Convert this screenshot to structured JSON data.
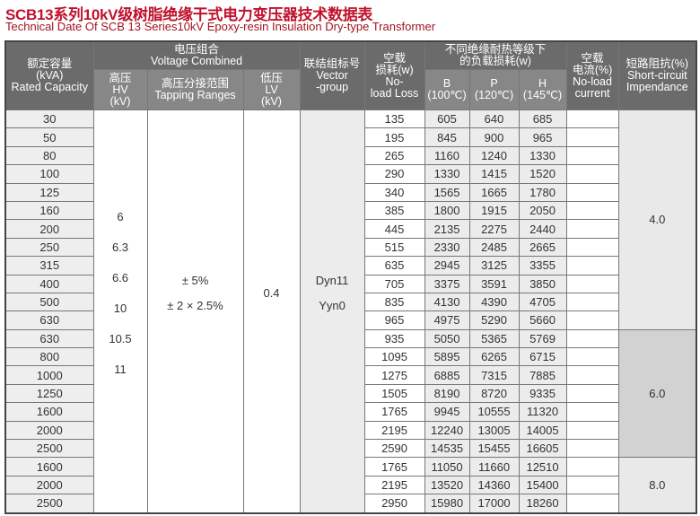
{
  "title": "SCB13系列10kV级树脂绝缘干式电力变压器技术数据表",
  "subtitle": "Technical Date Of SCB 13 Series10kV Epoxy-resin Insulation Dry-type Transformer",
  "headers": {
    "capacity": [
      "额定容量",
      "(kVA)",
      "Rated Capacity"
    ],
    "voltage": [
      "电压组合",
      "Voltage Combined"
    ],
    "hv": [
      "高压",
      "HV",
      "(kV)"
    ],
    "tapping": [
      "高压分接范围",
      "Tapping Ranges"
    ],
    "lv": [
      "低压",
      "LV",
      "(kV)"
    ],
    "vector": [
      "联结组标号",
      "Vector",
      "-group"
    ],
    "noload_loss": [
      "空载",
      "损耗(w)",
      "No-",
      "load Loss"
    ],
    "load_loss": [
      "不同绝缘耐热等级下",
      "的负载损耗(w)"
    ],
    "b": [
      "B",
      "(100℃)"
    ],
    "p": [
      "P",
      "(120℃)"
    ],
    "h": [
      "H",
      "(145℃)"
    ],
    "noload_current": [
      "空载",
      "电流(%)",
      "No-load",
      "current"
    ],
    "impedance": [
      "短路阻抗(%)",
      "Short-circuit",
      "Impendance"
    ]
  },
  "merged": {
    "hv_values": [
      "6",
      "6.3",
      "6.6",
      "10",
      "10.5",
      "11"
    ],
    "tapping_values": [
      "± 5%",
      "± 2 × 2.5%"
    ],
    "lv_value": "0.4",
    "vector_values": [
      "Dyn11",
      "Yyn0"
    ],
    "impedance_groups": [
      {
        "value": "4.0",
        "rows": 12
      },
      {
        "value": "6.0",
        "rows": 7
      },
      {
        "value": "8.0",
        "rows": 3
      }
    ]
  },
  "rows": [
    {
      "capacity": "30",
      "noload": "135",
      "b": "605",
      "p": "640",
      "h": "685",
      "current": ""
    },
    {
      "capacity": "50",
      "noload": "195",
      "b": "845",
      "p": "900",
      "h": "965",
      "current": ""
    },
    {
      "capacity": "80",
      "noload": "265",
      "b": "1160",
      "p": "1240",
      "h": "1330",
      "current": ""
    },
    {
      "capacity": "100",
      "noload": "290",
      "b": "1330",
      "p": "1415",
      "h": "1520",
      "current": ""
    },
    {
      "capacity": "125",
      "noload": "340",
      "b": "1565",
      "p": "1665",
      "h": "1780",
      "current": ""
    },
    {
      "capacity": "160",
      "noload": "385",
      "b": "1800",
      "p": "1915",
      "h": "2050",
      "current": ""
    },
    {
      "capacity": "200",
      "noload": "445",
      "b": "2135",
      "p": "2275",
      "h": "2440",
      "current": ""
    },
    {
      "capacity": "250",
      "noload": "515",
      "b": "2330",
      "p": "2485",
      "h": "2665",
      "current": ""
    },
    {
      "capacity": "315",
      "noload": "635",
      "b": "2945",
      "p": "3125",
      "h": "3355",
      "current": ""
    },
    {
      "capacity": "400",
      "noload": "705",
      "b": "3375",
      "p": "3591",
      "h": "3850",
      "current": ""
    },
    {
      "capacity": "500",
      "noload": "835",
      "b": "4130",
      "p": "4390",
      "h": "4705",
      "current": ""
    },
    {
      "capacity": "630",
      "noload": "965",
      "b": "4975",
      "p": "5290",
      "h": "5660",
      "current": ""
    },
    {
      "capacity": "630",
      "noload": "935",
      "b": "5050",
      "p": "5365",
      "h": "5769",
      "current": ""
    },
    {
      "capacity": "800",
      "noload": "1095",
      "b": "5895",
      "p": "6265",
      "h": "6715",
      "current": ""
    },
    {
      "capacity": "1000",
      "noload": "1275",
      "b": "6885",
      "p": "7315",
      "h": "7885",
      "current": ""
    },
    {
      "capacity": "1250",
      "noload": "1505",
      "b": "8190",
      "p": "8720",
      "h": "9335",
      "current": ""
    },
    {
      "capacity": "1600",
      "noload": "1765",
      "b": "9945",
      "p": "10555",
      "h": "11320",
      "current": ""
    },
    {
      "capacity": "2000",
      "noload": "2195",
      "b": "12240",
      "p": "13005",
      "h": "14005",
      "current": ""
    },
    {
      "capacity": "2500",
      "noload": "2590",
      "b": "14535",
      "p": "15455",
      "h": "16605",
      "current": ""
    },
    {
      "capacity": "1600",
      "noload": "1765",
      "b": "11050",
      "p": "11660",
      "h": "12510",
      "current": ""
    },
    {
      "capacity": "2000",
      "noload": "2195",
      "b": "13520",
      "p": "14360",
      "h": "15400",
      "current": ""
    },
    {
      "capacity": "2500",
      "noload": "2950",
      "b": "15980",
      "p": "17000",
      "h": "18260",
      "current": ""
    }
  ],
  "colors": {
    "title": "#c0122c",
    "header_bg": "#6b6b6b",
    "subheader_bg": "#878787",
    "cell_gray": "#ececec",
    "impedance_dark": "#d2d2d2"
  }
}
